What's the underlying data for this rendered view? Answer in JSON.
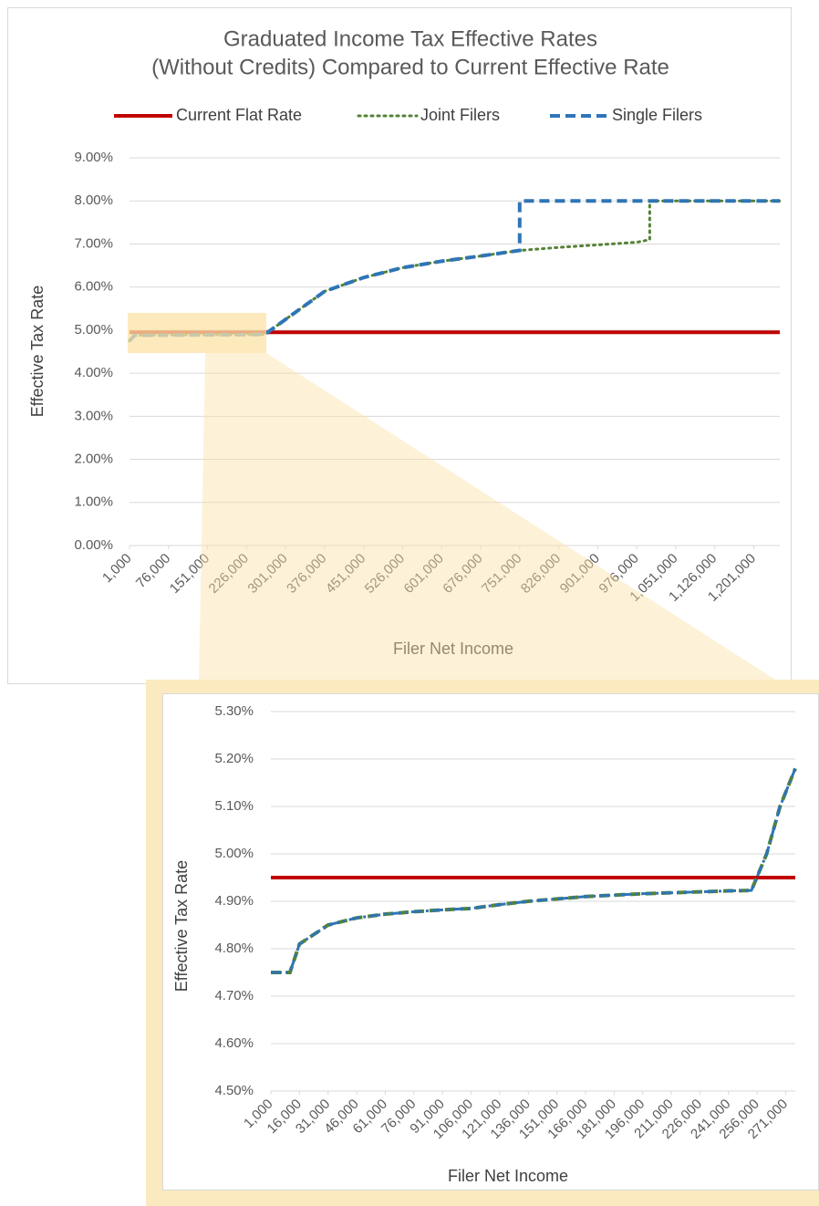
{
  "chart_data": [
    {
      "type": "line",
      "title": [
        "Graduated Income Tax Effective Rates",
        "(Without Credits) Compared to Current Effective Rate"
      ],
      "xlabel": "Filer Net Income",
      "ylabel": "Effective Tax Rate",
      "legend": "top",
      "grid": true,
      "x": [
        1000,
        11000,
        261000,
        301000,
        376000,
        451000,
        526000,
        601000,
        676000,
        751000,
        751000,
        826000,
        901000,
        976000,
        1001000,
        1001000,
        1251000
      ],
      "xlim": [
        1000,
        1251000
      ],
      "xticks": [
        {
          "value": 1000,
          "label": "1,000"
        },
        {
          "value": 76000,
          "label": "76,000"
        },
        {
          "value": 151000,
          "label": "151,000"
        },
        {
          "value": 226000,
          "label": "226,000"
        },
        {
          "value": 301000,
          "label": "301,000"
        },
        {
          "value": 376000,
          "label": "376,000"
        },
        {
          "value": 451000,
          "label": "451,000"
        },
        {
          "value": 526000,
          "label": "526,000"
        },
        {
          "value": 601000,
          "label": "601,000"
        },
        {
          "value": 676000,
          "label": "676,000"
        },
        {
          "value": 751000,
          "label": "751,000"
        },
        {
          "value": 826000,
          "label": "826,000"
        },
        {
          "value": 901000,
          "label": "901,000"
        },
        {
          "value": 976000,
          "label": "976,000"
        },
        {
          "value": 1051000,
          "label": "1,051,000"
        },
        {
          "value": 1126000,
          "label": "1,126,000"
        },
        {
          "value": 1201000,
          "label": "1,201,000"
        }
      ],
      "ylim": [
        0,
        9
      ],
      "yticks": [
        {
          "value": 0,
          "label": "0.00%"
        },
        {
          "value": 1,
          "label": "1.00%"
        },
        {
          "value": 2,
          "label": "2.00%"
        },
        {
          "value": 3,
          "label": "3.00%"
        },
        {
          "value": 4,
          "label": "4.00%"
        },
        {
          "value": 5,
          "label": "5.00%"
        },
        {
          "value": 6,
          "label": "6.00%"
        },
        {
          "value": 7,
          "label": "7.00%"
        },
        {
          "value": 8,
          "label": "8.00%"
        },
        {
          "value": 9,
          "label": "9.00%"
        }
      ],
      "series": [
        {
          "name": "Current Flat Rate",
          "color": "#c00000",
          "style": "solid",
          "values": [
            4.95,
            4.95,
            4.95,
            4.95,
            4.95,
            4.95,
            4.95,
            4.95,
            4.95,
            4.95,
            4.95,
            4.95,
            4.95,
            4.95,
            4.95,
            4.95,
            4.95
          ]
        },
        {
          "name": "Joint Filers",
          "color": "#548235",
          "style": "dotted",
          "values": [
            4.75,
            4.88,
            4.9,
            5.25,
            5.9,
            6.22,
            6.45,
            6.6,
            6.72,
            6.85,
            6.85,
            6.92,
            6.98,
            7.04,
            7.1,
            8,
            8
          ]
        },
        {
          "name": "Single Filers",
          "color": "#2e75b6",
          "style": "dashed",
          "values": [
            4.75,
            4.88,
            4.9,
            5.25,
            5.9,
            6.22,
            6.45,
            6.6,
            6.72,
            6.85,
            8,
            8,
            8,
            8,
            8,
            8,
            8
          ]
        }
      ]
    },
    {
      "type": "line",
      "xlabel": "Filer Net Income",
      "ylabel": "Effective Tax Rate",
      "grid": true,
      "x": [
        1000,
        11000,
        16000,
        31000,
        46000,
        61000,
        76000,
        91000,
        106000,
        121000,
        136000,
        151000,
        166000,
        181000,
        196000,
        211000,
        226000,
        241000,
        253000,
        261000,
        268000,
        276000
      ],
      "xlim": [
        1000,
        276000
      ],
      "xticks": [
        {
          "value": 1000,
          "label": "1,000"
        },
        {
          "value": 16000,
          "label": "16,000"
        },
        {
          "value": 31000,
          "label": "31,000"
        },
        {
          "value": 46000,
          "label": "46,000"
        },
        {
          "value": 61000,
          "label": "61,000"
        },
        {
          "value": 76000,
          "label": "76,000"
        },
        {
          "value": 91000,
          "label": "91,000"
        },
        {
          "value": 106000,
          "label": "106,000"
        },
        {
          "value": 121000,
          "label": "121,000"
        },
        {
          "value": 136000,
          "label": "136,000"
        },
        {
          "value": 151000,
          "label": "151,000"
        },
        {
          "value": 166000,
          "label": "166,000"
        },
        {
          "value": 181000,
          "label": "181,000"
        },
        {
          "value": 196000,
          "label": "196,000"
        },
        {
          "value": 211000,
          "label": "211,000"
        },
        {
          "value": 226000,
          "label": "226,000"
        },
        {
          "value": 241000,
          "label": "241,000"
        },
        {
          "value": 256000,
          "label": "256,000"
        },
        {
          "value": 271000,
          "label": "271,000"
        }
      ],
      "ylim": [
        4.5,
        5.3
      ],
      "yticks": [
        {
          "value": 4.5,
          "label": "4.50%"
        },
        {
          "value": 4.6,
          "label": "4.60%"
        },
        {
          "value": 4.7,
          "label": "4.70%"
        },
        {
          "value": 4.8,
          "label": "4.80%"
        },
        {
          "value": 4.9,
          "label": "4.90%"
        },
        {
          "value": 5.0,
          "label": "5.00%"
        },
        {
          "value": 5.1,
          "label": "5.10%"
        },
        {
          "value": 5.2,
          "label": "5.20%"
        },
        {
          "value": 5.3,
          "label": "5.30%"
        }
      ],
      "series": [
        {
          "color": "#c00000",
          "style": "solid",
          "values": [
            4.95,
            4.95,
            4.95,
            4.95,
            4.95,
            4.95,
            4.95,
            4.95,
            4.95,
            4.95,
            4.95,
            4.95,
            4.95,
            4.95,
            4.95,
            4.95,
            4.95,
            4.95,
            4.95,
            4.95,
            4.95,
            4.95
          ]
        },
        {
          "color": "#548235",
          "style": "dashed",
          "values": [
            4.75,
            4.75,
            4.81,
            4.85,
            4.865,
            4.873,
            4.878,
            4.882,
            4.885,
            4.893,
            4.9,
            4.905,
            4.91,
            4.913,
            4.916,
            4.918,
            4.92,
            4.922,
            4.923,
            5.0,
            5.1,
            5.18
          ]
        },
        {
          "color": "#2e75b6",
          "style": "dashdot",
          "values": [
            4.75,
            4.75,
            4.81,
            4.85,
            4.865,
            4.873,
            4.878,
            4.882,
            4.885,
            4.893,
            4.9,
            4.905,
            4.91,
            4.913,
            4.916,
            4.918,
            4.92,
            4.922,
            4.923,
            5.0,
            5.1,
            5.18
          ]
        }
      ]
    }
  ]
}
